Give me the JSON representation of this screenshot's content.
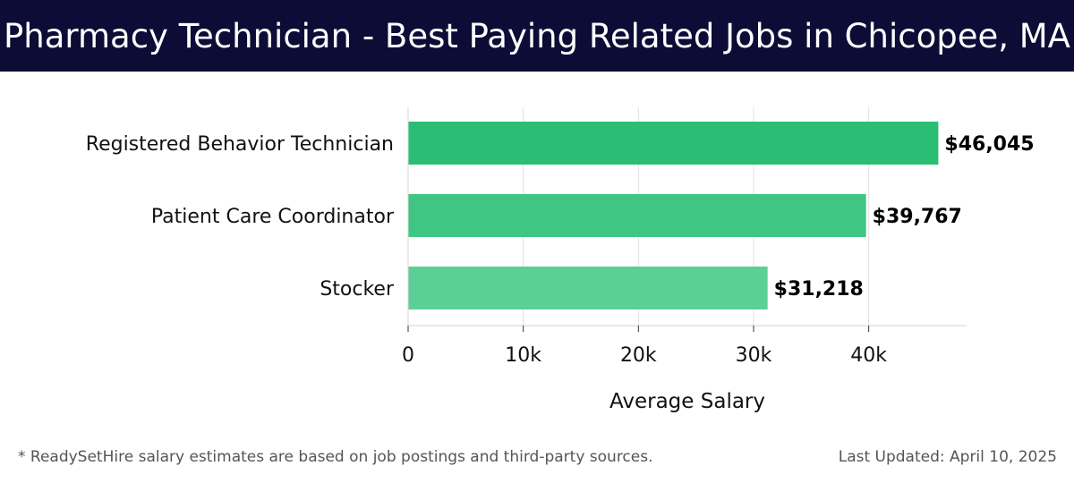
{
  "header": {
    "title": "Pharmacy Technician - Best Paying Related Jobs in Chicopee, MA"
  },
  "footer": {
    "note": "* ReadySetHire salary estimates are based on job postings and third-party sources.",
    "updated": "Last Updated: April 10, 2025"
  },
  "colors": {
    "header_bg": "#0c0c36",
    "bars": [
      "#2bbd73",
      "#3ec682",
      "#5ccf96"
    ]
  },
  "chart_data": {
    "type": "bar",
    "orientation": "horizontal",
    "categories": [
      "Registered Behavior Technician",
      "Patient Care Coordinator",
      "Stocker"
    ],
    "values": [
      46045,
      39767,
      31218
    ],
    "value_labels": [
      "$46,045",
      "$39,767",
      "$31,218"
    ],
    "xlabel": "Average Salary",
    "ylabel": "",
    "xlim": [
      0,
      48500
    ],
    "xticks": [
      0,
      10000,
      20000,
      30000,
      40000
    ],
    "xtick_labels": [
      "0",
      "10k",
      "20k",
      "30k",
      "40k"
    ],
    "grid": true
  }
}
